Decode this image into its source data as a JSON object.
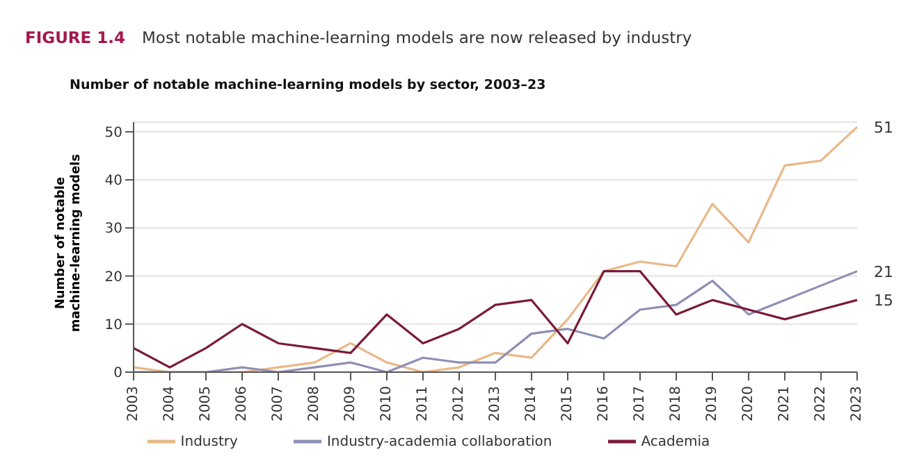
{
  "chart_data": {
    "type": "line",
    "title": "Most notable machine-learning models are now released by industry",
    "subtitle": "Number of notable machine-learning models by sector, 2003–23",
    "annotations": [
      "FIGURE 1.4"
    ],
    "ylabel": "Number of notable machine-learning models",
    "categories": [
      "2003",
      "2004",
      "2005",
      "2006",
      "2007",
      "2008",
      "2009",
      "2010",
      "2011",
      "2012",
      "2013",
      "2014",
      "2015",
      "2016",
      "2017",
      "2018",
      "2019",
      "2020",
      "2021",
      "2022",
      "2023"
    ],
    "series": [
      {
        "name": "Industry",
        "color": "#e8b887",
        "values": [
          1,
          0,
          0,
          0,
          1,
          2,
          6,
          2,
          0,
          1,
          4,
          3,
          11,
          21,
          23,
          22,
          35,
          27,
          43,
          44,
          51
        ],
        "value_labels": [
          null,
          null,
          null,
          null,
          null,
          null,
          null,
          null,
          null,
          null,
          null,
          null,
          null,
          null,
          null,
          null,
          null,
          null,
          null,
          null,
          "51"
        ]
      },
      {
        "name": "Industry-academia collaboration",
        "color": "#8e8fb5",
        "values": [
          0,
          0,
          0,
          1,
          0,
          1,
          2,
          0,
          3,
          2,
          2,
          8,
          9,
          7,
          13,
          14,
          19,
          12,
          15,
          18,
          21
        ],
        "value_labels": [
          null,
          null,
          null,
          null,
          null,
          null,
          null,
          null,
          null,
          null,
          null,
          null,
          null,
          null,
          null,
          null,
          null,
          null,
          null,
          null,
          "21"
        ]
      },
      {
        "name": "Academia",
        "color": "#7b1a3a",
        "values": [
          5,
          1,
          5,
          10,
          6,
          5,
          4,
          12,
          6,
          9,
          14,
          15,
          6,
          21,
          21,
          12,
          15,
          13,
          11,
          13,
          15
        ],
        "value_labels": [
          null,
          null,
          null,
          null,
          null,
          null,
          null,
          null,
          null,
          null,
          null,
          null,
          null,
          null,
          null,
          null,
          null,
          null,
          null,
          null,
          "15"
        ]
      }
    ],
    "ylim": [
      0,
      52
    ],
    "yticks": [
      0,
      10,
      20,
      30,
      40,
      50
    ],
    "grid": "y",
    "legend": "bottom",
    "marker": "none",
    "line_style": "solid"
  }
}
